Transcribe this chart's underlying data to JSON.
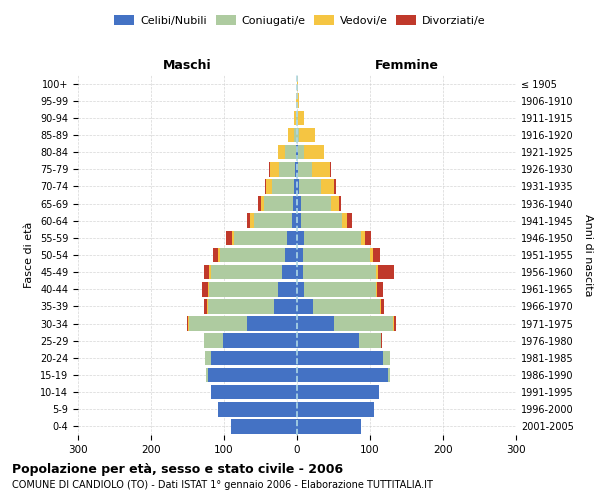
{
  "age_groups": [
    "0-4",
    "5-9",
    "10-14",
    "15-19",
    "20-24",
    "25-29",
    "30-34",
    "35-39",
    "40-44",
    "45-49",
    "50-54",
    "55-59",
    "60-64",
    "65-69",
    "70-74",
    "75-79",
    "80-84",
    "85-89",
    "90-94",
    "95-99",
    "100+"
  ],
  "birth_years": [
    "2001-2005",
    "1996-2000",
    "1991-1995",
    "1986-1990",
    "1981-1985",
    "1976-1980",
    "1971-1975",
    "1966-1970",
    "1961-1965",
    "1956-1960",
    "1951-1955",
    "1946-1950",
    "1941-1945",
    "1936-1940",
    "1931-1935",
    "1926-1930",
    "1921-1925",
    "1916-1920",
    "1911-1915",
    "1906-1910",
    "≤ 1905"
  ],
  "males": {
    "celibi": [
      90,
      108,
      118,
      122,
      118,
      102,
      68,
      32,
      26,
      20,
      16,
      14,
      7,
      5,
      4,
      3,
      2,
      0,
      0,
      0,
      0
    ],
    "coniugati": [
      0,
      0,
      0,
      2,
      8,
      25,
      80,
      90,
      95,
      98,
      90,
      72,
      52,
      40,
      30,
      22,
      14,
      4,
      1,
      0,
      0
    ],
    "vedovi": [
      0,
      0,
      0,
      0,
      0,
      0,
      1,
      1,
      1,
      2,
      2,
      3,
      5,
      5,
      8,
      12,
      10,
      8,
      3,
      1,
      0
    ],
    "divorziati": [
      0,
      0,
      0,
      0,
      0,
      1,
      2,
      4,
      8,
      8,
      7,
      8,
      5,
      3,
      2,
      1,
      0,
      0,
      0,
      0,
      0
    ]
  },
  "females": {
    "celibi": [
      88,
      105,
      112,
      125,
      118,
      85,
      50,
      22,
      10,
      8,
      8,
      10,
      6,
      5,
      3,
      2,
      1,
      0,
      0,
      0,
      0
    ],
    "coniugati": [
      0,
      0,
      0,
      3,
      10,
      30,
      82,
      92,
      98,
      100,
      92,
      78,
      55,
      42,
      30,
      18,
      8,
      3,
      1,
      0,
      0
    ],
    "vedovi": [
      0,
      0,
      0,
      0,
      0,
      0,
      1,
      1,
      2,
      3,
      4,
      5,
      8,
      10,
      18,
      25,
      28,
      22,
      8,
      3,
      1
    ],
    "divorziate": [
      0,
      0,
      0,
      0,
      0,
      1,
      2,
      4,
      8,
      22,
      10,
      8,
      6,
      3,
      2,
      1,
      0,
      0,
      0,
      0,
      0
    ]
  },
  "colors": {
    "celibi": "#4472C4",
    "coniugati": "#AECBA0",
    "vedovi": "#F5C542",
    "divorziati": "#C0392B"
  },
  "title": "Popolazione per età, sesso e stato civile - 2006",
  "subtitle": "COMUNE DI CANDIOLO (TO) - Dati ISTAT 1° gennaio 2006 - Elaborazione TUTTITALIA.IT",
  "label_maschi": "Maschi",
  "label_femmine": "Femmine",
  "ylabel_left": "Fasce di età",
  "ylabel_right": "Anni di nascita",
  "xlim": 300,
  "bg_color": "#FFFFFF",
  "grid_color": "#CCCCCC",
  "legend_labels": [
    "Celibi/Nubili",
    "Coniugati/e",
    "Vedovi/e",
    "Divorziati/e"
  ]
}
